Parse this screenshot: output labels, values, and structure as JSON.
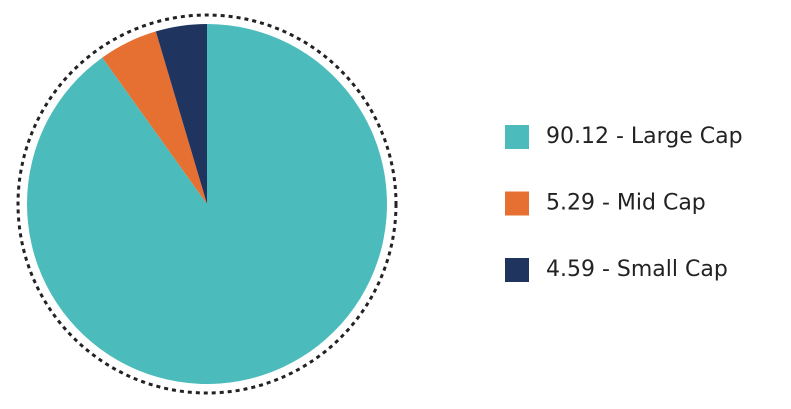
{
  "chart_data": {
    "type": "pie",
    "categories": [
      "90.12 - Large Cap",
      "5.29 - Mid Cap",
      "4.59 - Small Cap"
    ],
    "values": [
      90.12,
      5.29,
      4.59
    ],
    "colors": [
      "#4bbcbb",
      "#e67032",
      "#1f3560"
    ],
    "legend": "right"
  }
}
